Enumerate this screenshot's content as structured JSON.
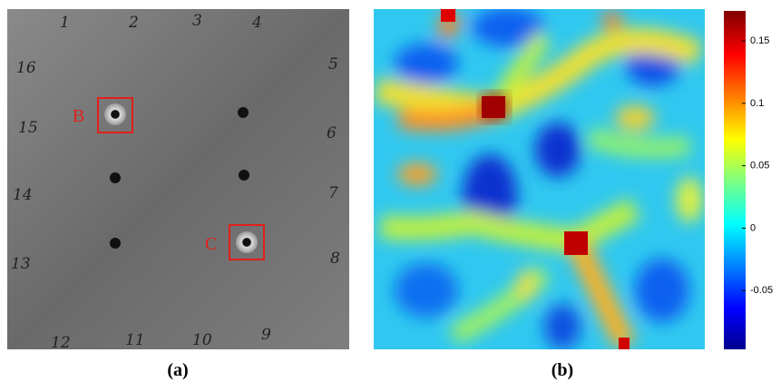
{
  "panel_a": {
    "caption": "(a)",
    "sensor_labels": [
      "1",
      "2",
      "3",
      "4",
      "5",
      "6",
      "7",
      "8",
      "9",
      "10",
      "11",
      "12",
      "13",
      "14",
      "15",
      "16"
    ],
    "marker_labels": [
      "B",
      "C"
    ]
  },
  "panel_b": {
    "caption": "(b)",
    "colorbar": {
      "lim": [
        -0.097,
        0.174
      ],
      "ticks": [
        0.15,
        0.1,
        0.05,
        0,
        -0.05
      ]
    }
  }
}
